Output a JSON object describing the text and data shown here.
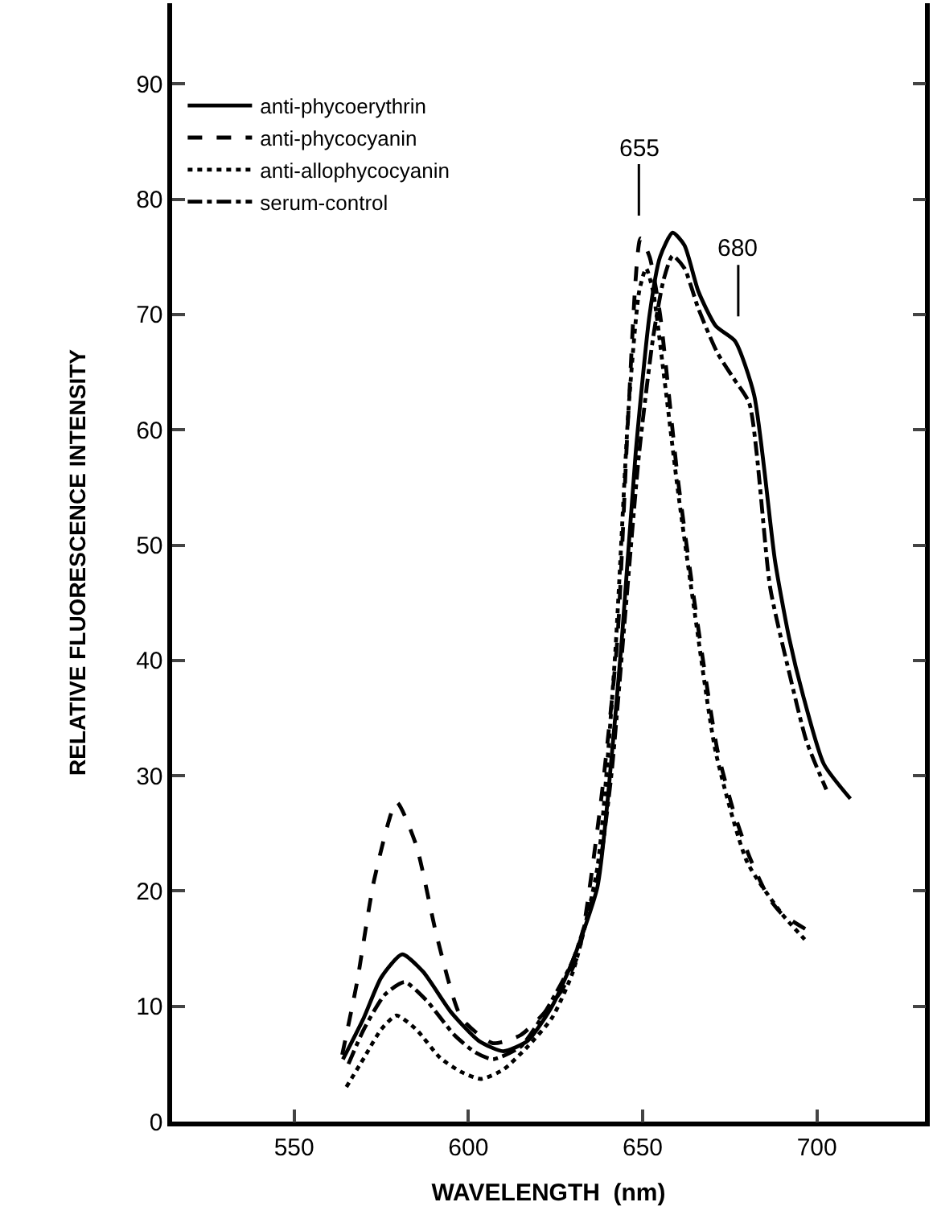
{
  "chart_data": {
    "type": "line",
    "xlabel": "WAVELENGTH  (nm)",
    "ylabel": "RELATIVE FLUORESCENCE INTENSITY",
    "xlim": [
      515,
      731
    ],
    "ylim": [
      0,
      97
    ],
    "xticks": [
      550,
      600,
      650,
      700
    ],
    "yticks": [
      0,
      10,
      20,
      30,
      40,
      50,
      60,
      70,
      80,
      90
    ],
    "legend": "top left",
    "marker": "none",
    "series": [
      {
        "name": "anti-phycoerythrin",
        "color": "#000000",
        "line_style": "solid",
        "x": [
          564,
          570,
          575,
          581,
          587,
          595,
          603,
          610,
          617,
          624,
          630,
          637,
          640,
          644,
          648,
          652,
          655,
          658.6,
          662,
          666,
          671,
          676.5,
          682,
          688,
          692,
          696,
          702,
          709.6
        ],
        "values": [
          5.4,
          9,
          12.5,
          14.5,
          13,
          9.5,
          7,
          6.1,
          7,
          10,
          14,
          20.3,
          28,
          41.7,
          58,
          70,
          75,
          77.1,
          76,
          72,
          69,
          67.7,
          63,
          48.6,
          42,
          37,
          31,
          28
        ]
      },
      {
        "name": "anti-phycocyanin",
        "color": "#000000",
        "line_style": "dashed",
        "x": [
          563.8,
          568,
          573,
          579.4,
          585,
          591,
          598,
          607,
          615,
          622,
          627,
          631.7,
          638,
          642.7,
          646,
          649.4,
          652,
          655,
          660,
          665,
          671.4,
          676,
          680.6,
          686,
          690,
          697.3
        ],
        "values": [
          5.8,
          12,
          21,
          27.7,
          24,
          16,
          9,
          6.8,
          7.5,
          9.5,
          11.5,
          14.7,
          27.7,
          41.6,
          62,
          76.6,
          75,
          70,
          56,
          44.8,
          32.3,
          27,
          23,
          19.5,
          18,
          16.6
        ]
      },
      {
        "name": "anti-allophycocyanin",
        "color": "#000000",
        "line_style": "dotted",
        "x": [
          565,
          570,
          575,
          579.4,
          585,
          592,
          598,
          603.7,
          610,
          617,
          624,
          630,
          637,
          642,
          646,
          649,
          651,
          653,
          656,
          660,
          665,
          671,
          680,
          690,
          696.5
        ],
        "values": [
          3,
          5.5,
          8,
          9.2,
          8,
          5.5,
          4.3,
          3.7,
          4.5,
          6.5,
          9,
          13,
          22,
          40,
          62,
          72,
          74,
          72,
          65,
          55,
          44,
          32,
          22.5,
          18,
          15.8
        ]
      },
      {
        "name": "serum-control",
        "color": "#000000",
        "line_style": "dashdot",
        "x": [
          565.6,
          570,
          576,
          581.7,
          588,
          596,
          602,
          607,
          615,
          622,
          630,
          637,
          641,
          645,
          649,
          653,
          656,
          658.6,
          662,
          666,
          671.4,
          676,
          680.6,
          686.6,
          692,
          697,
          702.7
        ],
        "values": [
          5,
          8,
          11,
          12.1,
          10.5,
          7.5,
          6,
          5.4,
          6.5,
          9.5,
          14,
          21,
          30,
          44,
          58,
          68,
          73,
          75.1,
          74,
          70.5,
          66.7,
          64.5,
          62.3,
          46.3,
          39,
          33,
          28.8
        ]
      }
    ],
    "annotations": [
      "655",
      "680"
    ]
  }
}
